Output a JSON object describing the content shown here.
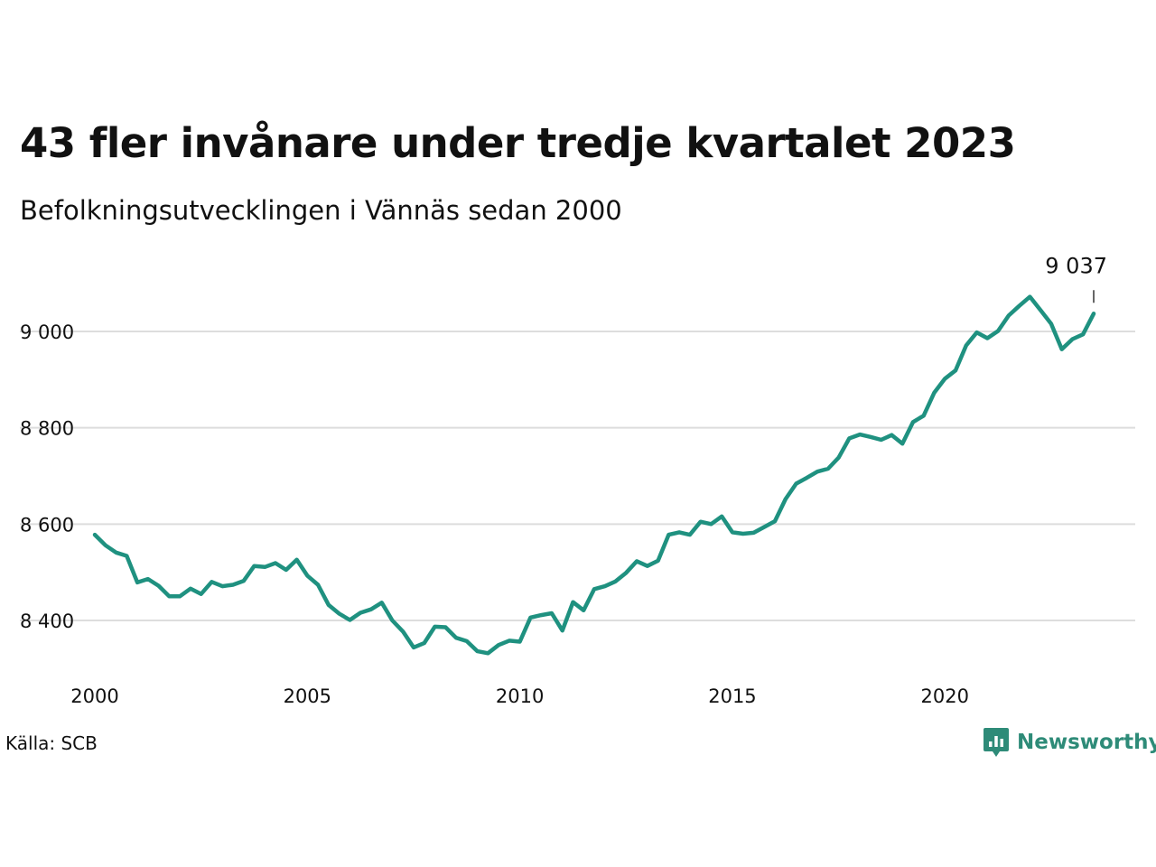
{
  "title": "43 fler invånare under tredje kvartalet 2023",
  "subtitle": "Befolkningsutvecklingen i Vännäs sedan 2000",
  "source": "Källa: SCB",
  "brand": {
    "name": "Newsworthy",
    "icon": "newsworthy-logo-icon",
    "color": "#2e8b78"
  },
  "chart_data": {
    "type": "line",
    "title": "43 fler invånare under tredje kvartalet 2023",
    "subtitle": "Befolkningsutvecklingen i Vännäs sedan 2000",
    "xlabel": "",
    "ylabel": "",
    "xlim": [
      2000.0,
      2024.0
    ],
    "ylim": [
      8290,
      9090
    ],
    "x_ticks": [
      {
        "value": 2000,
        "label": "2000"
      },
      {
        "value": 2005,
        "label": "2005"
      },
      {
        "value": 2010,
        "label": "2010"
      },
      {
        "value": 2015,
        "label": "2015"
      },
      {
        "value": 2020,
        "label": "2020"
      }
    ],
    "y_ticks": [
      {
        "value": 8400,
        "label": "8 400"
      },
      {
        "value": 8600,
        "label": "8 600"
      },
      {
        "value": 8800,
        "label": "8 800"
      },
      {
        "value": 9000,
        "label": "9 000"
      }
    ],
    "grid": "horizontal",
    "line_color": "#1f9180",
    "end_label": {
      "value": 9037,
      "text": "9 037"
    },
    "series": [
      {
        "x": [
          2000.0,
          2000.25,
          2000.5,
          2000.75,
          2001.0,
          2001.25,
          2001.5,
          2001.75,
          2002.0,
          2002.25,
          2002.5,
          2002.75,
          2003.0,
          2003.25,
          2003.5,
          2003.75,
          2004.0,
          2004.25,
          2004.5,
          2004.75,
          2005.0,
          2005.25,
          2005.5,
          2005.75,
          2006.0,
          2006.25,
          2006.5,
          2006.75,
          2007.0,
          2007.25,
          2007.5,
          2007.75,
          2008.0,
          2008.25,
          2008.5,
          2008.75,
          2009.0,
          2009.25,
          2009.5,
          2009.75,
          2010.0,
          2010.25,
          2010.5,
          2010.75,
          2011.0,
          2011.25,
          2011.5,
          2011.75,
          2012.0,
          2012.25,
          2012.5,
          2012.75,
          2013.0,
          2013.25,
          2013.5,
          2013.75,
          2014.0,
          2014.25,
          2014.5,
          2014.75,
          2015.0,
          2015.25,
          2015.5,
          2015.75,
          2016.0,
          2016.25,
          2016.5,
          2016.75,
          2017.0,
          2017.25,
          2017.5,
          2017.75,
          2018.0,
          2018.25,
          2018.5,
          2018.75,
          2019.0,
          2019.25,
          2019.5,
          2019.75,
          2020.0,
          2020.25,
          2020.5,
          2020.75,
          2021.0,
          2021.25,
          2021.5,
          2021.75,
          2022.0,
          2022.25,
          2022.5,
          2022.75,
          2023.0,
          2023.25,
          2023.5
        ],
        "values": [
          8578,
          8556,
          8541,
          8534,
          8479,
          8486,
          8472,
          8450,
          8450,
          8466,
          8455,
          8480,
          8471,
          8474,
          8482,
          8513,
          8511,
          8519,
          8505,
          8526,
          8493,
          8474,
          8432,
          8414,
          8401,
          8416,
          8423,
          8437,
          8400,
          8377,
          8344,
          8353,
          8387,
          8386,
          8364,
          8357,
          8336,
          8332,
          8349,
          8358,
          8356,
          8406,
          8411,
          8415,
          8379,
          8438,
          8421,
          8465,
          8471,
          8481,
          8499,
          8523,
          8513,
          8524,
          8578,
          8583,
          8578,
          8605,
          8600,
          8616,
          8583,
          8580,
          8582,
          8594,
          8606,
          8652,
          8684,
          8696,
          8709,
          8715,
          8738,
          8778,
          8786,
          8781,
          8775,
          8785,
          8767,
          8812,
          8825,
          8873,
          8902,
          8919,
          8971,
          8998,
          8986,
          9001,
          9033,
          9053,
          9072,
          9044,
          9016,
          8963,
          8984,
          8994,
          9037
        ]
      }
    ]
  }
}
